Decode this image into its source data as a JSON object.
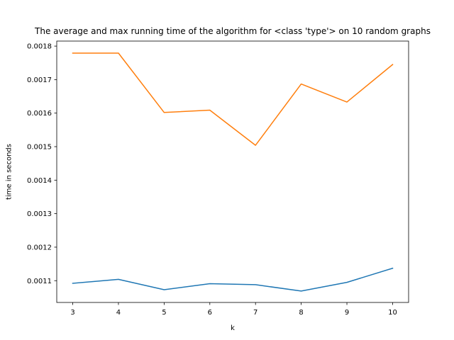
{
  "chart_data": {
    "type": "line",
    "title": "The average and max running time of the algorithm for <class 'type'> on 10 random graphs",
    "xlabel": "k",
    "ylabel": "time in seconds",
    "x": [
      3,
      4,
      5,
      6,
      7,
      8,
      9,
      10
    ],
    "xlim": [
      2.65,
      10.35
    ],
    "ylim": [
      0.001035,
      0.001815
    ],
    "x_ticks": [
      "3",
      "4",
      "5",
      "6",
      "7",
      "8",
      "9",
      "10"
    ],
    "y_ticks": [
      "0.0011",
      "0.0012",
      "0.0013",
      "0.0014",
      "0.0015",
      "0.0016",
      "0.0017",
      "0.0018"
    ],
    "grid": false,
    "legend": false,
    "series": [
      {
        "color": "#1f77b4",
        "values": [
          0.001092,
          0.001104,
          0.001073,
          0.001091,
          0.001088,
          0.001069,
          0.001095,
          0.001137
        ]
      },
      {
        "color": "#ff7f0e",
        "values": [
          0.001779,
          0.001779,
          0.001602,
          0.001609,
          0.001504,
          0.001687,
          0.001633,
          0.001745
        ]
      }
    ]
  }
}
